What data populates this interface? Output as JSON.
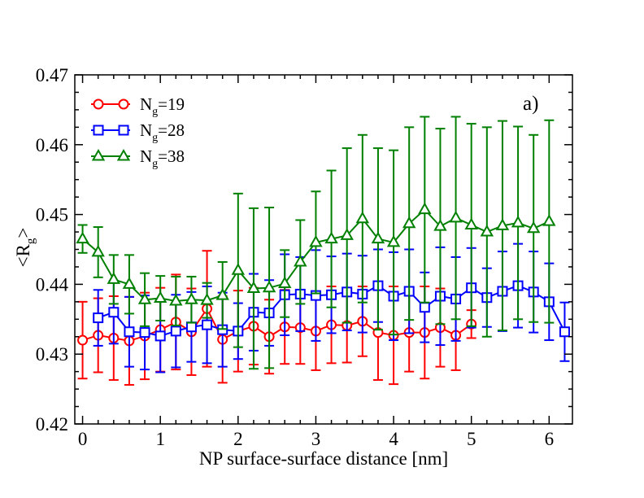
{
  "chart_data": {
    "type": "line",
    "panel_label": "a)",
    "xlabel": "NP surface-surface distance [nm]",
    "ylabel": {
      "main": "<R",
      "sub": "g",
      "end": ">"
    },
    "xlim": [
      -0.1,
      6.3
    ],
    "ylim": [
      0.42,
      0.47
    ],
    "x_ticks": [
      {
        "v": 0,
        "label": "0"
      },
      {
        "v": 1,
        "label": "1"
      },
      {
        "v": 2,
        "label": "2"
      },
      {
        "v": 3,
        "label": "3"
      },
      {
        "v": 4,
        "label": "4"
      },
      {
        "v": 5,
        "label": "5"
      },
      {
        "v": 6,
        "label": "6"
      }
    ],
    "y_ticks": [
      {
        "v": 0.42,
        "label": "0.42"
      },
      {
        "v": 0.43,
        "label": "0.43"
      },
      {
        "v": 0.44,
        "label": "0.44"
      },
      {
        "v": 0.45,
        "label": "0.45"
      },
      {
        "v": 0.46,
        "label": "0.46"
      },
      {
        "v": 0.47,
        "label": "0.47"
      }
    ],
    "grid": false,
    "legend_placement": "top-left",
    "series": [
      {
        "name_main": "N",
        "name_sub": "g",
        "name_end": "=19",
        "color": "#ff0000",
        "marker": "circle",
        "x": [
          0,
          0.2,
          0.4,
          0.6,
          0.8,
          1.0,
          1.2,
          1.4,
          1.6,
          1.8,
          2.0,
          2.2,
          2.4,
          2.6,
          2.8,
          3.0,
          3.2,
          3.4,
          3.6,
          3.8,
          4.0,
          4.2,
          4.4,
          4.6,
          4.8,
          5.0
        ],
        "y": [
          0.432,
          0.4327,
          0.4323,
          0.4319,
          0.4326,
          0.4335,
          0.4346,
          0.4332,
          0.4365,
          0.4321,
          0.4333,
          0.434,
          0.4325,
          0.4339,
          0.4338,
          0.4333,
          0.4342,
          0.4341,
          0.4347,
          0.4331,
          0.4327,
          0.4331,
          0.4331,
          0.4338,
          0.4327,
          0.4343
        ],
        "err": [
          0.0055,
          0.0053,
          0.006,
          0.0063,
          0.0062,
          0.006,
          0.0068,
          0.0062,
          0.0083,
          0.0062,
          0.0058,
          0.0055,
          0.0053,
          0.0053,
          0.0052,
          0.0056,
          0.0055,
          0.0053,
          0.005,
          0.0068,
          0.007,
          0.0056,
          0.0066,
          0.0056,
          0.005,
          0.002
        ]
      },
      {
        "name_main": "N",
        "name_sub": "g",
        "name_end": "=28",
        "color": "#0000ff",
        "marker": "square",
        "x": [
          0.2,
          0.4,
          0.6,
          0.8,
          1.0,
          1.2,
          1.4,
          1.6,
          1.8,
          2.0,
          2.2,
          2.4,
          2.6,
          2.8,
          3.0,
          3.2,
          3.4,
          3.6,
          3.8,
          4.0,
          4.2,
          4.4,
          4.6,
          4.8,
          5.0,
          5.2,
          5.4,
          5.6,
          5.8,
          6.0,
          6.2
        ],
        "y": [
          0.4352,
          0.436,
          0.4332,
          0.4331,
          0.4326,
          0.4333,
          0.4339,
          0.4342,
          0.4335,
          0.4333,
          0.436,
          0.4359,
          0.4385,
          0.4386,
          0.4384,
          0.4385,
          0.4389,
          0.4386,
          0.4398,
          0.4383,
          0.439,
          0.4367,
          0.4383,
          0.4379,
          0.4395,
          0.4381,
          0.439,
          0.4398,
          0.4389,
          0.4375,
          0.4332
        ],
        "err": [
          0.004,
          0.0045,
          0.005,
          0.0053,
          0.0052,
          0.0052,
          0.005,
          0.0055,
          0.0053,
          0.004,
          0.0055,
          0.0047,
          0.0058,
          0.0053,
          0.0065,
          0.0055,
          0.0055,
          0.0055,
          0.0052,
          0.0063,
          0.006,
          0.005,
          0.007,
          0.006,
          0.0057,
          0.0042,
          0.0057,
          0.006,
          0.0058,
          0.0055,
          0.0042
        ]
      },
      {
        "name_main": "N",
        "name_sub": "g",
        "name_end": "=38",
        "color": "#008000",
        "marker": "triangle",
        "x": [
          0,
          0.2,
          0.4,
          0.6,
          0.8,
          1.0,
          1.2,
          1.4,
          1.6,
          1.8,
          2.0,
          2.2,
          2.4,
          2.6,
          2.8,
          3.0,
          3.2,
          3.4,
          3.6,
          3.8,
          4.0,
          4.2,
          4.4,
          4.6,
          4.8,
          5.0,
          5.2,
          5.4,
          5.6,
          5.8,
          6.0
        ],
        "y": [
          0.4465,
          0.4446,
          0.4407,
          0.44,
          0.4378,
          0.438,
          0.4376,
          0.4378,
          0.4377,
          0.4384,
          0.442,
          0.4394,
          0.4395,
          0.4401,
          0.4432,
          0.446,
          0.4465,
          0.447,
          0.4494,
          0.4465,
          0.446,
          0.4487,
          0.4507,
          0.4483,
          0.4495,
          0.4485,
          0.4475,
          0.4484,
          0.4488,
          0.448,
          0.449
        ],
        "err": [
          0.002,
          0.0036,
          0.0035,
          0.0042,
          0.0038,
          0.0032,
          0.0035,
          0.0033,
          0.0025,
          0.0048,
          0.011,
          0.0115,
          0.0115,
          0.0048,
          0.006,
          0.0073,
          0.0098,
          0.0125,
          0.012,
          0.013,
          0.0132,
          0.0138,
          0.0133,
          0.014,
          0.0145,
          0.0145,
          0.015,
          0.015,
          0.0138,
          0.0134,
          0.0145
        ]
      }
    ]
  }
}
